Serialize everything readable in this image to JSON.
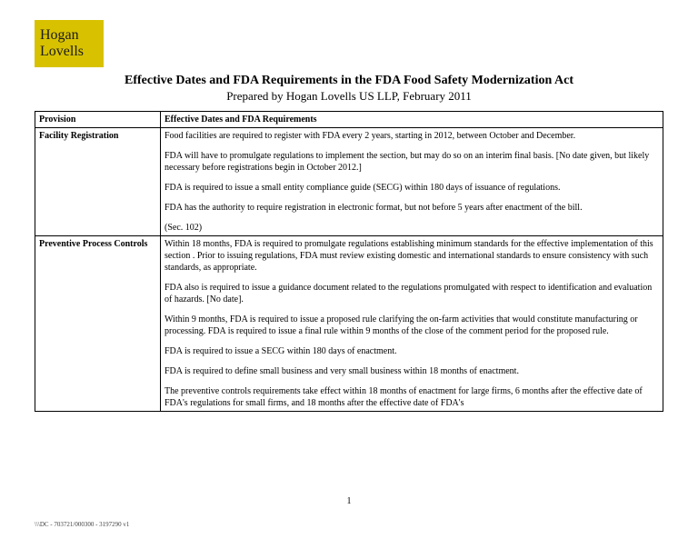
{
  "logo": {
    "line1": "Hogan",
    "line2": "Lovells"
  },
  "title": {
    "main": "Effective Dates and FDA Requirements in the FDA Food Safety Modernization Act",
    "sub": "Prepared by Hogan Lovells US LLP, February 2011"
  },
  "table": {
    "header": {
      "col1": "Provision",
      "col2": "Effective Dates and FDA Requirements"
    },
    "rows": [
      {
        "label": "Facility Registration",
        "paras": [
          "Food facilities are required to register with FDA every 2 years, starting in 2012, between October and December.",
          "FDA will have to promulgate regulations to implement the section, but may do so on an interim final basis. [No date given, but likely necessary before registrations begin in October 2012.]",
          "FDA is required to issue a small entity compliance guide (SECG) within 180 days of issuance of regulations.",
          "FDA has the authority to require registration in electronic format, but not before 5 years after enactment of the bill.",
          "(Sec. 102)"
        ]
      },
      {
        "label": "Preventive Process Controls",
        "paras": [
          "Within 18 months, FDA is required to promulgate regulations establishing minimum standards for the effective implementation of this section .  Prior to issuing regulations, FDA must review existing domestic and international standards to ensure consistency with such standards, as appropriate.",
          "FDA also is required to issue a guidance document related to the regulations promulgated with respect to identification and evaluation of hazards. [No date].",
          "Within 9 months, FDA is required to issue a proposed rule clarifying the on-farm activities that would constitute manufacturing or processing.  FDA is required to issue a final rule within 9 months of the close of the comment period for the proposed rule.",
          "FDA is required to issue a SECG within 180 days of enactment.",
          "FDA is required to define small business and very small business within 18 months of enactment.",
          "The preventive controls requirements take effect within 18 months of enactment for large firms, 6 months after the effective date of FDA's regulations for small firms, and 18 months after the effective date of FDA's"
        ]
      }
    ]
  },
  "page_number": "1",
  "doc_id": "\\\\\\DC - 703721/000300 - 3197290 v1"
}
